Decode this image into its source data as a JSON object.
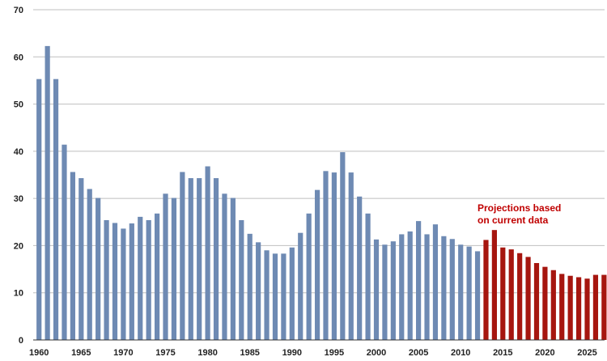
{
  "chart_data": {
    "type": "bar",
    "title": "",
    "xlabel": "",
    "ylabel": "",
    "ylim": [
      0,
      70
    ],
    "yticks": [
      0,
      10,
      20,
      30,
      40,
      50,
      60,
      70
    ],
    "xtick_labels": [
      "1960",
      "1965",
      "1970",
      "1975",
      "1980",
      "1985",
      "1990",
      "1995",
      "2000",
      "2005",
      "2010",
      "2015",
      "2020",
      "2025"
    ],
    "grid": "horizontal",
    "annotation": {
      "lines": [
        "Projections based",
        "on current data"
      ]
    },
    "colors": {
      "historical": "#6e8ab3",
      "projection": "#a6160f",
      "grid": "#bfbfbf",
      "annotation": "#c00000"
    },
    "series": [
      {
        "years": [
          1960,
          1961,
          1962,
          1963,
          1964,
          1965,
          1966,
          1967,
          1968,
          1969,
          1970,
          1971,
          1972,
          1973,
          1974,
          1975,
          1976,
          1977,
          1978,
          1979,
          1980,
          1981,
          1982,
          1983,
          1984,
          1985,
          1986,
          1987,
          1988,
          1989,
          1990,
          1991,
          1992,
          1993,
          1994,
          1995,
          1996,
          1997,
          1998,
          1999,
          2000,
          2001,
          2002,
          2003,
          2004,
          2005,
          2006,
          2007,
          2008,
          2009,
          2010,
          2011,
          2012
        ],
        "values": [
          55.3,
          62.3,
          55.3,
          41.4,
          35.6,
          34.3,
          32.0,
          30.1,
          25.4,
          24.8,
          23.6,
          24.7,
          26.1,
          25.4,
          26.8,
          31.0,
          30.1,
          35.6,
          34.3,
          34.3,
          36.8,
          34.3,
          31.0,
          30.1,
          25.4,
          22.5,
          20.7,
          19.0,
          18.3,
          18.3,
          19.6,
          22.7,
          26.8,
          31.8,
          35.8,
          35.5,
          39.8,
          35.5,
          30.4,
          26.8,
          21.3,
          20.2,
          20.9,
          22.4,
          23.0,
          25.2,
          22.4,
          24.5,
          22.0,
          21.4,
          20.2,
          19.8,
          18.8
        ]
      },
      {
        "years": [
          2013,
          2014,
          2015,
          2016,
          2017,
          2018,
          2019,
          2020,
          2021,
          2022,
          2023,
          2024,
          2025,
          2026,
          2027
        ],
        "values": [
          21.2,
          23.3,
          19.6,
          19.2,
          18.4,
          17.6,
          16.3,
          15.5,
          14.8,
          14.0,
          13.6,
          13.3,
          13.0,
          13.8,
          13.8
        ]
      }
    ]
  }
}
